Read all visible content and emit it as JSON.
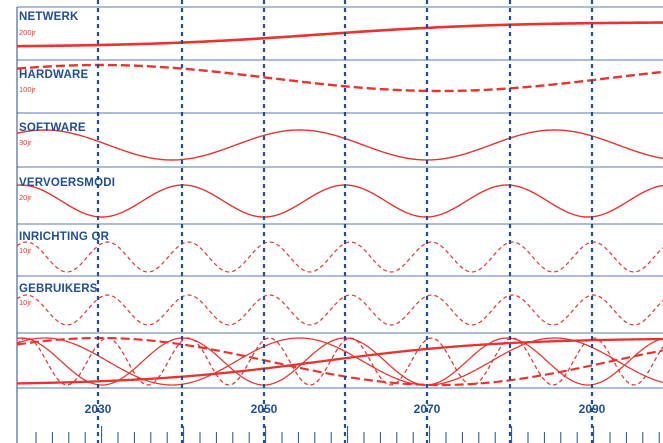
{
  "rows": [
    {
      "label": "NETWERK",
      "period": "200jr",
      "dashed": false
    },
    {
      "label": "HARDWARE",
      "period": "100jr",
      "dashed": true
    },
    {
      "label": "SOFTWARE",
      "period": "30jr",
      "dashed": false
    },
    {
      "label": "VERVOERSMODI",
      "period": "20jr",
      "dashed": false
    },
    {
      "label": "INRICHTING OR",
      "period": "10jr",
      "dashed": true
    },
    {
      "label": "GEBRUIKERS",
      "period": "10jr",
      "dashed": true
    }
  ],
  "axis": {
    "labels": [
      "2030",
      "2050",
      "2070",
      "2090"
    ]
  },
  "colors": {
    "line": "#e8332f",
    "text": "#1f4e96",
    "grid": "#1f4e96"
  }
}
